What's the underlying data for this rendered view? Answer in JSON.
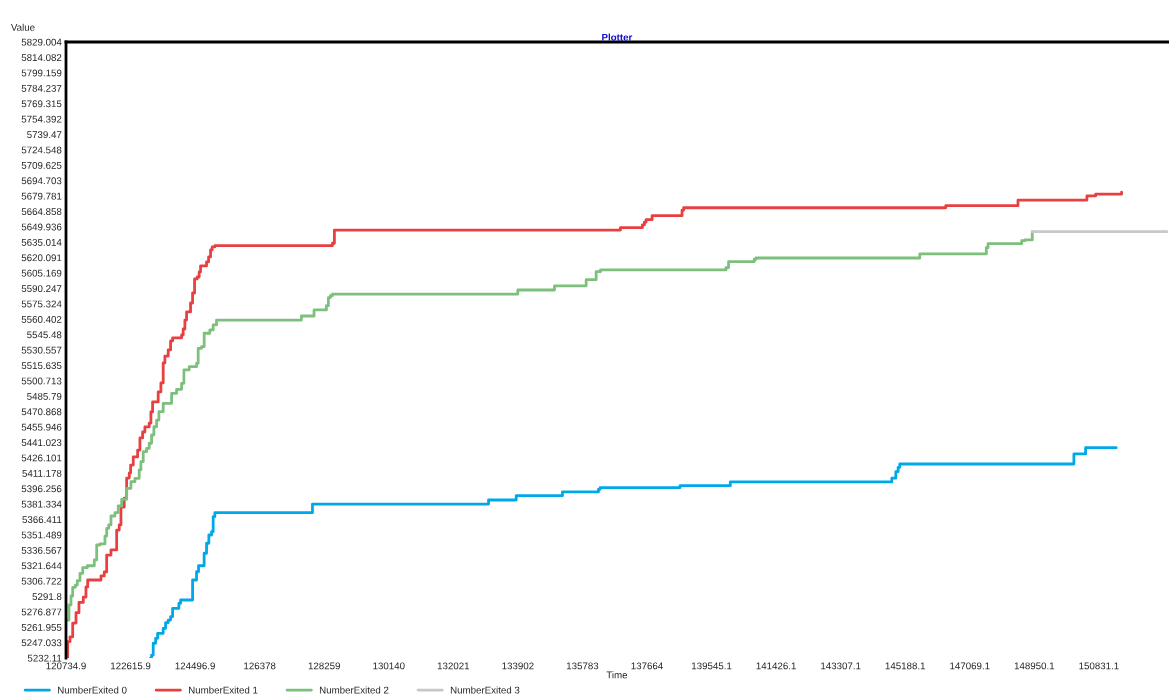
{
  "chart_data": {
    "type": "step",
    "title": "Plotter",
    "xlabel": "Time",
    "ylabel": "Value",
    "xlim": [
      120734.9,
      152840
    ],
    "ylim": [
      5232.11,
      5829.004
    ],
    "xticks": [
      120734.9,
      122615.9,
      124496.9,
      126378,
      128259,
      130140,
      132021,
      133902,
      135783,
      137664,
      139545.1,
      141426.1,
      143307.1,
      145188.1,
      147069.1,
      148950.1,
      150831.1
    ],
    "yticks": [
      5232.11,
      5247.033,
      5261.955,
      5276.877,
      5291.8,
      5306.722,
      5321.644,
      5336.567,
      5351.489,
      5366.411,
      5381.334,
      5396.256,
      5411.178,
      5426.101,
      5441.023,
      5455.946,
      5470.868,
      5485.79,
      5500.713,
      5515.635,
      5530.557,
      5545.48,
      5560.402,
      5575.324,
      5590.247,
      5605.169,
      5620.091,
      5635.014,
      5649.936,
      5664.858,
      5679.781,
      5694.703,
      5709.625,
      5724.548,
      5739.47,
      5754.392,
      5769.315,
      5784.237,
      5799.159,
      5814.082,
      5829.004
    ],
    "legend": "bottom left",
    "grid": false,
    "series": [
      {
        "name": "NumberExited 0",
        "color": "#00a8e8",
        "x": [
          123200,
          123229,
          123276,
          123346,
          123404,
          123567,
          123637,
          123713,
          123782,
          123841,
          124024,
          124074,
          124423,
          124539,
          124597,
          124760,
          124830,
          124897,
          124976,
          125023,
          125072,
          127916,
          133047,
          133853,
          135201,
          136249,
          136298,
          138627,
          140091,
          144798,
          144914,
          144981,
          145030,
          150103,
          150444,
          151335
        ],
        "values": [
          5232.11,
          5235,
          5246.4,
          5251.2,
          5256,
          5260.9,
          5266.3,
          5268.9,
          5272.1,
          5280.3,
          5285.1,
          5288.3,
          5307.7,
          5315.7,
          5321.5,
          5333.6,
          5343.3,
          5351.3,
          5354.5,
          5369,
          5372.9,
          5381.3,
          5385.2,
          5389.4,
          5393,
          5395.6,
          5397.1,
          5399.1,
          5402.7,
          5406.3,
          5412.6,
          5416.9,
          5420.1,
          5429.8,
          5435.9,
          5435.9
        ]
      },
      {
        "name": "NumberExited 1",
        "color": "#e84040",
        "x": [
          120750,
          120784,
          120851,
          120930,
          121026,
          121113,
          121239,
          121317,
          121367,
          121754,
          121850,
          121920,
          122045,
          122211,
          122286,
          122336,
          122432,
          122502,
          122578,
          122618,
          122694,
          122822,
          122889,
          122967,
          123034,
          123159,
          123209,
          123258,
          123421,
          123500,
          123567,
          123616,
          123713,
          123782,
          123841,
          124103,
          124149,
          124199,
          124248,
          124364,
          124423,
          124481,
          124557,
          124615,
          124656,
          124830,
          124889,
          124947,
          124993,
          125072,
          128498,
          128556,
          136889,
          137529,
          137588,
          137637,
          137812,
          138685,
          138732,
          146369,
          148474,
          150482,
          150736,
          151492
        ],
        "values": [
          5232.11,
          5247.9,
          5252.5,
          5266,
          5276,
          5286,
          5291.2,
          5301,
          5307.7,
          5311.6,
          5315.5,
          5331.9,
          5336.8,
          5356.1,
          5361,
          5378.4,
          5387.1,
          5406.5,
          5411.4,
          5419.1,
          5426.9,
          5433.6,
          5445.3,
          5451.1,
          5456,
          5459.8,
          5470.5,
          5480.2,
          5489.9,
          5498.6,
          5518,
          5524.7,
          5530.6,
          5539.3,
          5542.2,
          5545.1,
          5550.9,
          5559.6,
          5567.4,
          5576.1,
          5585.8,
          5599.4,
          5601.3,
          5606.2,
          5612,
          5615.9,
          5620.7,
          5627.5,
          5630.4,
          5631.6,
          5634,
          5646.8,
          5649.1,
          5651.7,
          5654.4,
          5656.8,
          5660.7,
          5666,
          5668.4,
          5670.4,
          5675.7,
          5679.8,
          5681.5,
          5683.5
        ]
      },
      {
        "name": "NumberExited 2",
        "color": "#7dbf7d",
        "x": [
          120755,
          120822,
          120880,
          120930,
          121006,
          121064,
          121142,
          121221,
          121355,
          121559,
          121629,
          121725,
          121870,
          121920,
          121978,
          122045,
          122161,
          122257,
          122356,
          122502,
          122627,
          122743,
          122868,
          122918,
          122985,
          123084,
          123160,
          123229,
          123296,
          123375,
          123442,
          123567,
          123812,
          123957,
          124103,
          124170,
          124324,
          124539,
          124586,
          124685,
          124761,
          124926,
          125023,
          125121,
          127595,
          127962,
          128323,
          128381,
          128439,
          128498,
          133900,
          134968,
          135891,
          136182,
          136307,
          139966,
          140041,
          140789,
          140839,
          145612,
          147551,
          147601,
          148582,
          148678,
          148890
        ],
        "values": [
          5268.9,
          5283.5,
          5292.2,
          5300.6,
          5302.8,
          5307,
          5314.2,
          5319.6,
          5321.5,
          5327.1,
          5341.6,
          5342.6,
          5350.3,
          5357.8,
          5361,
          5369.7,
          5372.9,
          5379.4,
          5385.9,
          5396.5,
          5403,
          5406.2,
          5414.3,
          5422.3,
          5432,
          5435.3,
          5440.2,
          5448.2,
          5456.2,
          5462.7,
          5470.8,
          5478.9,
          5488.6,
          5492.5,
          5498.3,
          5511.2,
          5514.4,
          5517.7,
          5532.2,
          5533.8,
          5546.8,
          5550,
          5554.8,
          5559.6,
          5563.5,
          5569.4,
          5573.5,
          5581.3,
          5583.2,
          5584.8,
          5588.7,
          5592.6,
          5598.7,
          5606.4,
          5608.1,
          5610.3,
          5616.1,
          5618.5,
          5619.7,
          5623.6,
          5629.7,
          5633.6,
          5636.5,
          5637.2,
          5645.2
        ]
      },
      {
        "name": "NumberExited 3",
        "color": "#c8c8c8",
        "x": [
          148890,
          152840
        ],
        "values": [
          5645.2,
          5645.2
        ]
      }
    ]
  }
}
